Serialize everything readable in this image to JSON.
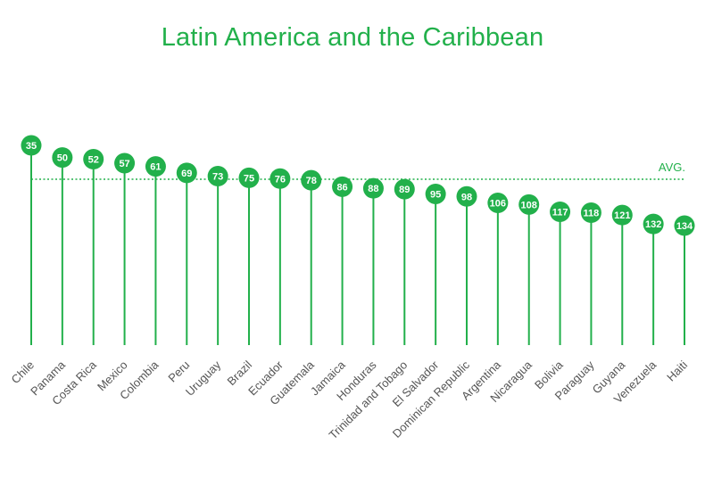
{
  "chart_data": {
    "type": "lollipop",
    "title": "Latin America and the Caribbean",
    "categories": [
      "Chile",
      "Panama",
      "Costa Rica",
      "Mexico",
      "Colombia",
      "Peru",
      "Uruguay",
      "Brazil",
      "Ecuador",
      "Guatemala",
      "Jamaica",
      "Honduras",
      "Trinidad and Tobago",
      "El Salvador",
      "Dominican Republic",
      "Argentina",
      "Nicaragua",
      "Bolivia",
      "Paraguay",
      "Guyana",
      "Venezuela",
      "Haiti"
    ],
    "values": [
      35,
      50,
      52,
      57,
      61,
      69,
      73,
      75,
      76,
      78,
      86,
      88,
      89,
      95,
      98,
      106,
      108,
      117,
      118,
      121,
      132,
      134
    ],
    "reference_line": {
      "label": "AVG.",
      "style": "dotted"
    },
    "xlabel": "",
    "ylabel": "",
    "grid": false,
    "legend": "none",
    "colors": {
      "accent": "#22b04b",
      "label_text": "#555555"
    }
  }
}
